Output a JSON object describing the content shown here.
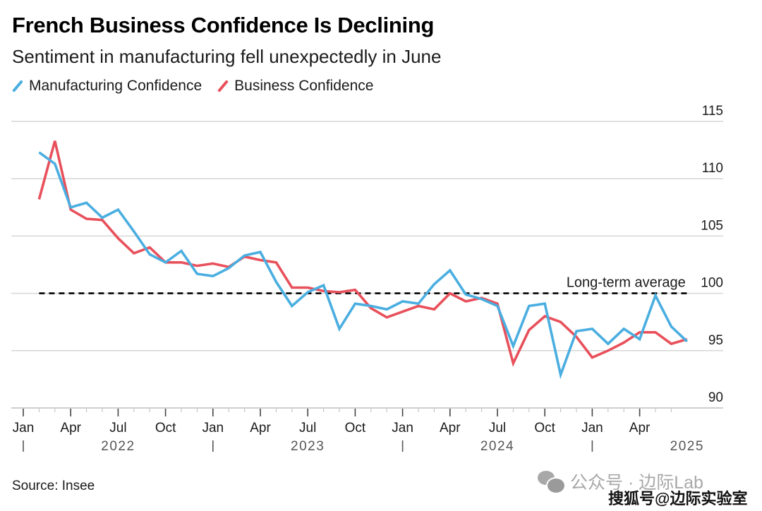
{
  "chart_data": {
    "type": "line",
    "title": "French Business Confidence Is Declining",
    "subtitle": "Sentiment in manufacturing fell unexpectedly in June",
    "source": "Source: Insee",
    "xlabel": "",
    "ylabel": "",
    "ylim": [
      90,
      115
    ],
    "yticks": [
      90,
      95,
      100,
      105,
      110,
      115
    ],
    "grid": true,
    "legend_position": "top-left",
    "x_start": "Jan 2022",
    "x_end": "Jun 2025",
    "x_frequency": "monthly",
    "x_tick_labels": [
      "Jan",
      "Apr",
      "Jul",
      "Oct",
      "Jan",
      "Apr",
      "Jul",
      "Oct",
      "Jan",
      "Apr",
      "Jul",
      "Oct",
      "Jan",
      "Apr"
    ],
    "x_year_labels": [
      "2022",
      "2023",
      "2024",
      "2025"
    ],
    "annotations": [
      {
        "type": "hline",
        "value": 100,
        "style": "dashed",
        "label": "Long-term average"
      }
    ],
    "series": [
      {
        "name": "Manufacturing Confidence",
        "color": "#4aaee0",
        "values": [
          112.3,
          111.3,
          107.5,
          107.9,
          106.6,
          107.3,
          105.4,
          103.4,
          102.7,
          103.7,
          101.7,
          101.5,
          102.2,
          103.3,
          103.6,
          101.0,
          98.9,
          100.1,
          100.7,
          96.9,
          99.1,
          98.9,
          98.6,
          99.3,
          99.1,
          100.8,
          102.0,
          99.9,
          99.5,
          98.9,
          95.4,
          98.9,
          99.1,
          92.9,
          96.7,
          96.9,
          95.6,
          96.9,
          96.0,
          99.8,
          97.1,
          95.8
        ]
      },
      {
        "name": "Business Confidence",
        "color": "#e8505b",
        "values": [
          108.2,
          113.3,
          107.3,
          106.5,
          106.4,
          104.8,
          103.5,
          104.0,
          102.7,
          102.7,
          102.4,
          102.6,
          102.3,
          103.2,
          102.9,
          102.7,
          100.5,
          100.5,
          100.2,
          100.1,
          100.3,
          98.7,
          97.9,
          98.4,
          98.9,
          98.6,
          100.0,
          99.3,
          99.6,
          99.1,
          93.9,
          96.8,
          98.0,
          97.5,
          96.2,
          94.4,
          95.0,
          95.7,
          96.6,
          96.6,
          95.6,
          96.0
        ]
      }
    ]
  },
  "legend": {
    "items": [
      {
        "label": "Manufacturing Confidence",
        "color": "#4aaee0"
      },
      {
        "label": "Business Confidence",
        "color": "#e8505b"
      }
    ]
  },
  "watermarks": {
    "wechat": "公众号 · 边际Lab",
    "sohu": "搜狐号@边际实验室"
  }
}
